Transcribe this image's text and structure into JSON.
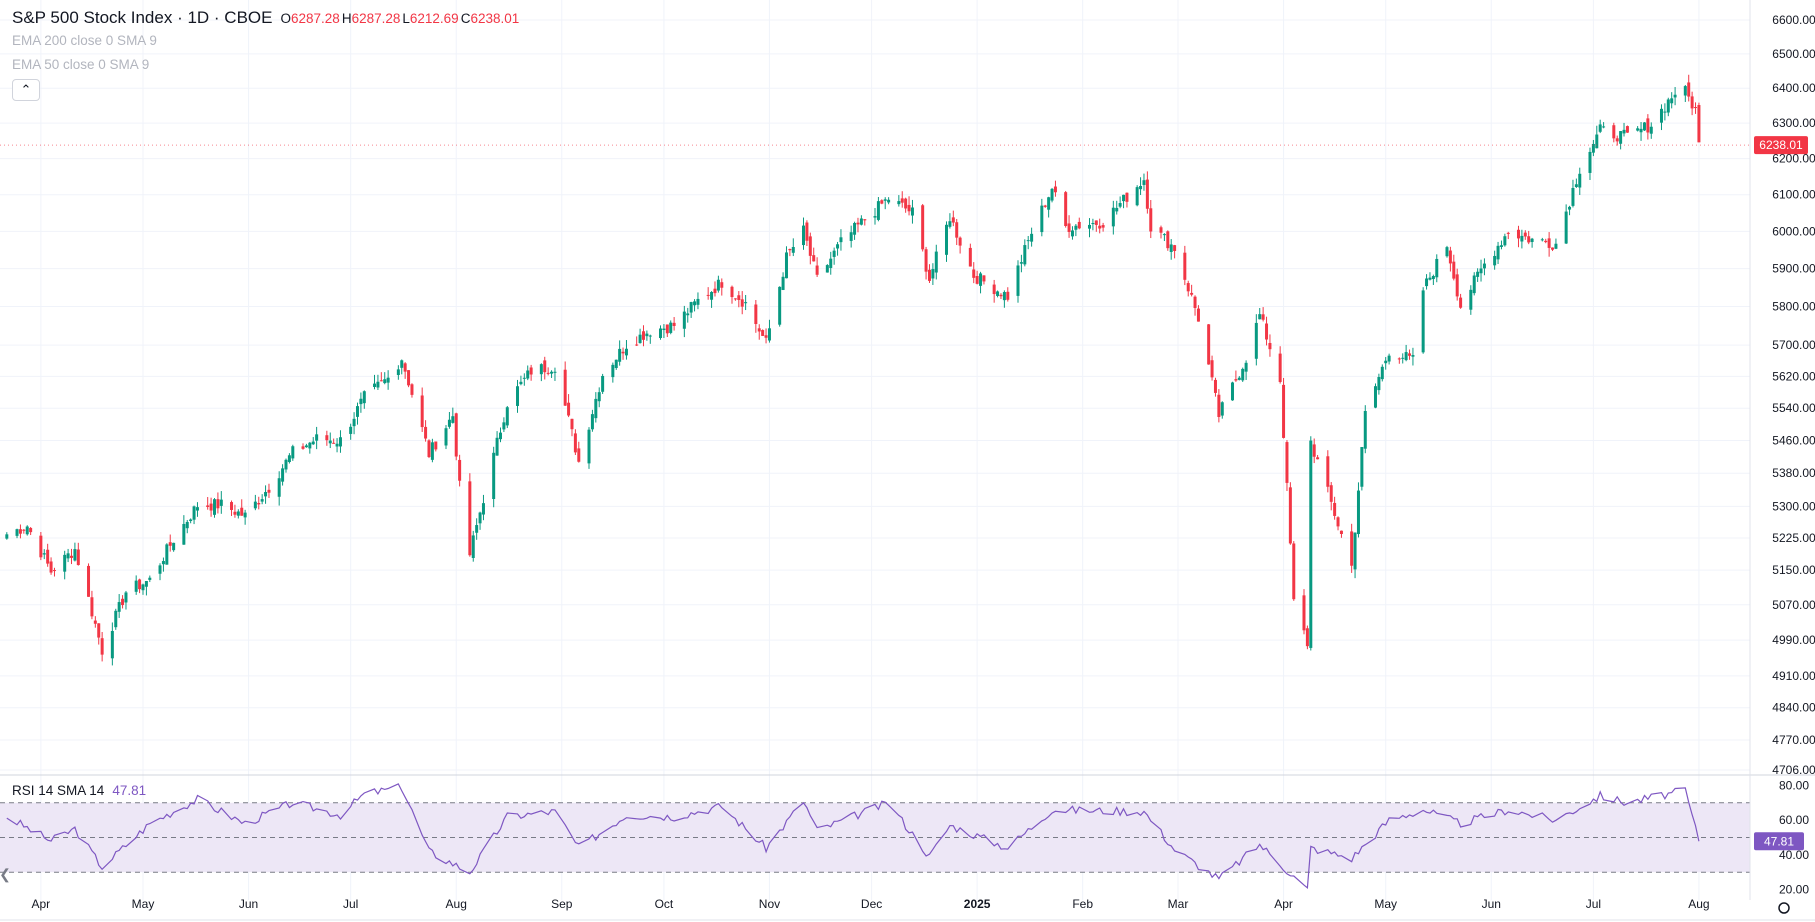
{
  "header": {
    "symbol_title": "S&P 500 Stock Index · 1D · CBOE",
    "ohlc": [
      {
        "key": "O",
        "value": "6287.28"
      },
      {
        "key": "H",
        "value": "6287.28"
      },
      {
        "key": "L",
        "value": "6212.69"
      },
      {
        "key": "C",
        "value": "6238.01"
      }
    ],
    "indicators": [
      "EMA 200 close 0 SMA 9",
      "EMA 50 close 0 SMA 9"
    ],
    "collapse_icon": "chevron-up-icon"
  },
  "rsi_legend": {
    "label": "RSI 14 SMA 14",
    "value": "47.81"
  },
  "colors": {
    "up": "#089981",
    "down": "#f23645",
    "rsi_line": "#7e57c2",
    "rsi_band": "#ede7f6",
    "grid": "#f0f3fa"
  },
  "chart_data": [
    {
      "type": "candlestick",
      "title": "S&P 500 Stock Index · 1D · CBOE",
      "ylabel": "",
      "ylim": [
        4706,
        6600
      ],
      "log_scale": true,
      "grid": true,
      "price_ticks": [
        "6600.00",
        "6500.00",
        "6400.00",
        "6300.00",
        "6200.00",
        "6100.00",
        "6000.00",
        "5900.00",
        "5800.00",
        "5700.00",
        "5620.00",
        "5540.00",
        "5460.00",
        "5380.00",
        "5300.00",
        "5225.00",
        "5150.00",
        "5070.00",
        "4990.00",
        "4910.00",
        "4840.00",
        "4770.00",
        "4706.00"
      ],
      "last_price_label": "6238.01",
      "x_ticks": [
        {
          "label": "Apr",
          "date": "2024-04-01",
          "bold": false
        },
        {
          "label": "May",
          "date": "2024-05-01",
          "bold": false
        },
        {
          "label": "Jun",
          "date": "2024-06-01",
          "bold": false
        },
        {
          "label": "Jul",
          "date": "2024-07-01",
          "bold": false
        },
        {
          "label": "Aug",
          "date": "2024-08-01",
          "bold": false
        },
        {
          "label": "Sep",
          "date": "2024-09-01",
          "bold": false
        },
        {
          "label": "Oct",
          "date": "2024-10-01",
          "bold": false
        },
        {
          "label": "Nov",
          "date": "2024-11-01",
          "bold": false
        },
        {
          "label": "Dec",
          "date": "2024-12-01",
          "bold": false
        },
        {
          "label": "2025",
          "date": "2025-01-01",
          "bold": true
        },
        {
          "label": "Feb",
          "date": "2025-02-01",
          "bold": false
        },
        {
          "label": "Mar",
          "date": "2025-03-01",
          "bold": false
        },
        {
          "label": "Apr",
          "date": "2025-04-01",
          "bold": false
        },
        {
          "label": "May",
          "date": "2025-05-01",
          "bold": false
        },
        {
          "label": "Jun",
          "date": "2025-06-01",
          "bold": false
        },
        {
          "label": "Jul",
          "date": "2025-07-01",
          "bold": false
        },
        {
          "label": "Aug",
          "date": "2025-08-01",
          "bold": false
        }
      ],
      "close_path": [
        [
          "2024-03-22",
          5234
        ],
        [
          "2024-03-28",
          5254
        ],
        [
          "2024-04-04",
          5147
        ],
        [
          "2024-04-11",
          5199
        ],
        [
          "2024-04-19",
          4967
        ],
        [
          "2024-04-26",
          5100
        ],
        [
          "2024-05-03",
          5127
        ],
        [
          "2024-05-10",
          5222
        ],
        [
          "2024-05-17",
          5303
        ],
        [
          "2024-05-24",
          5304
        ],
        [
          "2024-05-31",
          5277
        ],
        [
          "2024-06-07",
          5346
        ],
        [
          "2024-06-14",
          5431
        ],
        [
          "2024-06-21",
          5464
        ],
        [
          "2024-06-28",
          5460
        ],
        [
          "2024-07-05",
          5567
        ],
        [
          "2024-07-12",
          5615
        ],
        [
          "2024-07-16",
          5667
        ],
        [
          "2024-07-24",
          5427
        ],
        [
          "2024-07-31",
          5522
        ],
        [
          "2024-08-02",
          5346
        ],
        [
          "2024-08-05",
          5186
        ],
        [
          "2024-08-16",
          5554
        ],
        [
          "2024-08-23",
          5634
        ],
        [
          "2024-08-30",
          5648
        ],
        [
          "2024-09-06",
          5408
        ],
        [
          "2024-09-13",
          5626
        ],
        [
          "2024-09-20",
          5702
        ],
        [
          "2024-09-27",
          5738
        ],
        [
          "2024-10-04",
          5751
        ],
        [
          "2024-10-11",
          5815
        ],
        [
          "2024-10-18",
          5864
        ],
        [
          "2024-10-25",
          5808
        ],
        [
          "2024-10-31",
          5705
        ],
        [
          "2024-11-06",
          5929
        ],
        [
          "2024-11-11",
          6001
        ],
        [
          "2024-11-15",
          5870
        ],
        [
          "2024-11-22",
          5969
        ],
        [
          "2024-11-29",
          6032
        ],
        [
          "2024-12-06",
          6090
        ],
        [
          "2024-12-13",
          6051
        ],
        [
          "2024-12-18",
          5872
        ],
        [
          "2024-12-24",
          6040
        ],
        [
          "2024-12-31",
          5882
        ],
        [
          "2025-01-10",
          5827
        ],
        [
          "2025-01-17",
          5997
        ],
        [
          "2025-01-23",
          6119
        ],
        [
          "2025-01-27",
          6012
        ],
        [
          "2025-02-07",
          6026
        ],
        [
          "2025-02-19",
          6144
        ],
        [
          "2025-02-21",
          6013
        ],
        [
          "2025-02-28",
          5955
        ],
        [
          "2025-03-07",
          5770
        ],
        [
          "2025-03-13",
          5522
        ],
        [
          "2025-03-21",
          5667
        ],
        [
          "2025-03-25",
          5777
        ],
        [
          "2025-03-31",
          5612
        ],
        [
          "2025-04-04",
          5074
        ],
        [
          "2025-04-08",
          4983
        ],
        [
          "2025-04-09",
          5457
        ],
        [
          "2025-04-21",
          5158
        ],
        [
          "2025-04-25",
          5525
        ],
        [
          "2025-05-02",
          5687
        ],
        [
          "2025-05-09",
          5660
        ],
        [
          "2025-05-12",
          5844
        ],
        [
          "2025-05-19",
          5963
        ],
        [
          "2025-05-23",
          5802
        ],
        [
          "2025-05-30",
          5912
        ],
        [
          "2025-06-06",
          6000
        ],
        [
          "2025-06-13",
          5977
        ],
        [
          "2025-06-20",
          5967
        ],
        [
          "2025-06-27",
          6173
        ],
        [
          "2025-07-03",
          6279
        ],
        [
          "2025-07-11",
          6260
        ],
        [
          "2025-07-18",
          6297
        ],
        [
          "2025-07-25",
          6389
        ],
        [
          "2025-07-28",
          6389
        ],
        [
          "2025-07-31",
          6339
        ],
        [
          "2025-08-01",
          6238
        ]
      ]
    },
    {
      "type": "line",
      "title": "RSI 14 SMA 14",
      "ylabel": "",
      "ylim": [
        14,
        86
      ],
      "y_ticks": [
        "80.00",
        "60.00",
        "40.00",
        "20.00"
      ],
      "band": [
        30,
        70
      ],
      "midline": 50,
      "last_value_label": "47.81",
      "series": [
        {
          "values": [
            [
              "2024-03-22",
              62
            ],
            [
              "2024-04-04",
              48
            ],
            [
              "2024-04-11",
              55
            ],
            [
              "2024-04-19",
              33
            ],
            [
              "2024-05-03",
              58
            ],
            [
              "2024-05-17",
              72
            ],
            [
              "2024-05-31",
              58
            ],
            [
              "2024-06-14",
              70
            ],
            [
              "2024-06-28",
              63
            ],
            [
              "2024-07-05",
              75
            ],
            [
              "2024-07-16",
              79
            ],
            [
              "2024-07-24",
              42
            ],
            [
              "2024-08-05",
              30
            ],
            [
              "2024-08-16",
              62
            ],
            [
              "2024-08-30",
              65
            ],
            [
              "2024-09-06",
              44
            ],
            [
              "2024-09-20",
              63
            ],
            [
              "2024-10-04",
              62
            ],
            [
              "2024-10-18",
              68
            ],
            [
              "2024-10-31",
              44
            ],
            [
              "2024-11-11",
              71
            ],
            [
              "2024-11-15",
              54
            ],
            [
              "2024-12-06",
              70
            ],
            [
              "2024-12-18",
              39
            ],
            [
              "2024-12-24",
              57
            ],
            [
              "2025-01-10",
              44
            ],
            [
              "2025-01-23",
              66
            ],
            [
              "2025-02-19",
              65
            ],
            [
              "2025-02-28",
              43
            ],
            [
              "2025-03-13",
              26
            ],
            [
              "2025-03-25",
              46
            ],
            [
              "2025-04-08",
              20
            ],
            [
              "2025-04-09",
              44
            ],
            [
              "2025-04-21",
              38
            ],
            [
              "2025-05-02",
              60
            ],
            [
              "2025-05-12",
              66
            ],
            [
              "2025-05-23",
              58
            ],
            [
              "2025-06-06",
              66
            ],
            [
              "2025-06-20",
              60
            ],
            [
              "2025-07-03",
              74
            ],
            [
              "2025-07-11",
              70
            ],
            [
              "2025-07-28",
              77
            ],
            [
              "2025-08-01",
              47.81
            ]
          ]
        }
      ]
    }
  ]
}
